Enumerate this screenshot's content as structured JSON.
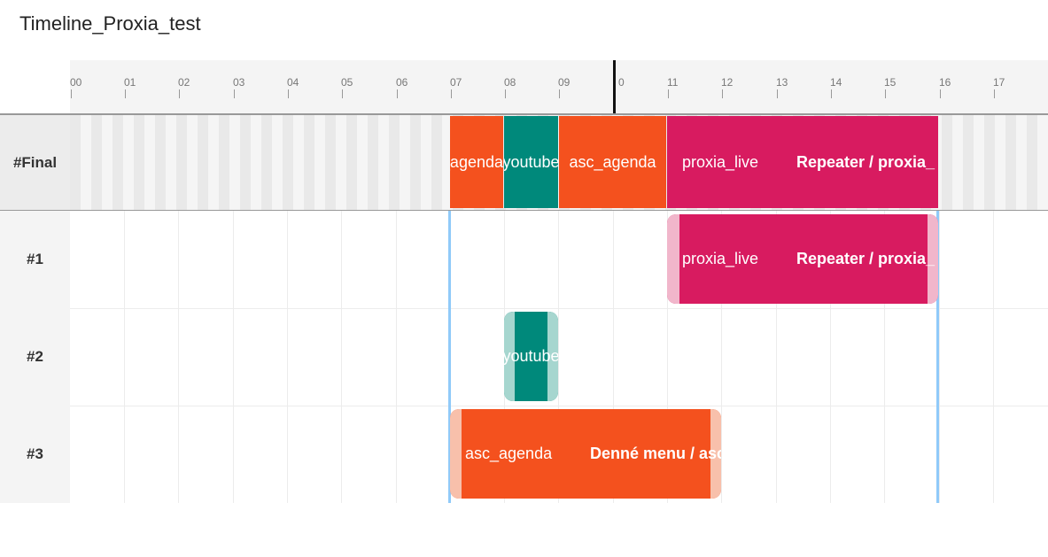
{
  "title": "Timeline_Proxia_test",
  "ruler": {
    "ticks": [
      "00",
      "01",
      "02",
      "03",
      "04",
      "05",
      "06",
      "07",
      "08",
      "09",
      "0",
      "11",
      "12",
      "13",
      "14",
      "15",
      "16",
      "17"
    ]
  },
  "tracks": {
    "final_label": "#Final",
    "labels": [
      "#1",
      "#2",
      "#3"
    ]
  },
  "final_clips": {
    "c1": "c_agenda",
    "c2": "youtube",
    "c3": "asc_agenda",
    "c4": "proxia_live",
    "c5": "Repeater / proxia_"
  },
  "track1_clip": {
    "label": "proxia_live",
    "label2": "Repeater / proxia_"
  },
  "track2_clip": {
    "label": "youtube"
  },
  "track3_clip": {
    "label": "asc_agenda",
    "label2": "Denné menu / asc"
  },
  "colors": {
    "orange": "#f4511e",
    "teal": "#00897b",
    "pink": "#d81b60",
    "playhead": "#111111",
    "marker": "#90caf9"
  }
}
